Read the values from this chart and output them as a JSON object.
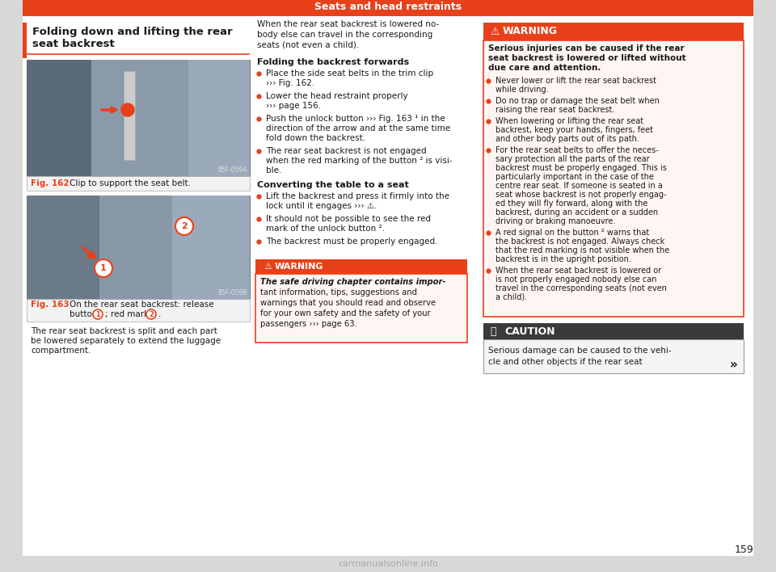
{
  "page_bg": "#d8d8d8",
  "content_bg": "#ffffff",
  "header_bg": "#e8401a",
  "header_text": "Seats and head restraints",
  "header_text_color": "#ffffff",
  "page_number": "159",
  "orange": "#e8401a",
  "dark_text": "#1a1a1a",
  "fig_label_color": "#e8401a",
  "warning_bg": "#fff5f3",
  "warning_border": "#e8401a",
  "caution_header_bg": "#3a3a3a",
  "caution_body_bg": "#f5f5f5",
  "image_bg": "#7a8a96",
  "fig162_id": "85F-059A",
  "fig163_id": "85F-059B",
  "section_title_line1": "Folding down and lifting the rear",
  "section_title_line2": "seat backrest",
  "fig162_caption": "Clip to support the seat belt.",
  "fig163_caption_line1": "On the rear seat backrest: release",
  "fig163_caption_line2_pre": "button",
  "fig163_caption_line2_mid": "; red mark",
  "intro_lines": [
    "When the rear seat backrest is lowered no-",
    "body else can travel in the corresponding",
    "seats (not even a child)."
  ],
  "folding_title": "Folding the backrest forwards",
  "mid_bullets": [
    [
      "Place the side seat belts in the trim clip",
      "››› Fig. 162."
    ],
    [
      "Lower the head restraint properly",
      "››› page 156."
    ],
    [
      "Push the unlock button ››› Fig. 163 ¹ in the",
      "direction of the arrow and at the same time",
      "fold down the backrest."
    ],
    [
      "The rear seat backrest is not engaged",
      "when the red marking of the button ² is visi-",
      "ble."
    ]
  ],
  "converting_title": "Converting the table to a seat",
  "convert_bullets": [
    [
      "Lift the backrest and press it firmly into the",
      "lock until it engages ››› ⚠."
    ],
    [
      "It should not be possible to see the red",
      "mark of the unlock button ²."
    ],
    [
      "The backrest must be properly engaged."
    ]
  ],
  "mid_warning_lines": [
    "The safe driving chapter contains impor-",
    "tant information, tips, suggestions and",
    "warnings that you should read and observe",
    "for your own safety and the safety of your",
    "passengers ››› page 63."
  ],
  "mid_warning_bold_count": 1,
  "right_warning_bold": [
    "Serious injuries can be caused if the rear",
    "seat backrest is lowered or lifted without",
    "due care and attention."
  ],
  "right_warning_bullets": [
    [
      "Never lower or lift the rear seat backrest",
      "while driving."
    ],
    [
      "Do no trap or damage the seat belt when",
      "raising the rear seat backrest."
    ],
    [
      "When lowering or lifting the rear seat",
      "backrest, keep your hands, fingers, feet",
      "and other body parts out of its path."
    ],
    [
      "For the rear seat belts to offer the neces-",
      "sary protection all the parts of the rear",
      "backrest must be properly engaged. This is",
      "particularly important in the case of the",
      "centre rear seat. If someone is seated in a",
      "seat whose backrest is not properly engag-",
      "ed they will fly forward, along with the",
      "backrest, during an accident or a sudden",
      "driving or braking manoeuvre."
    ],
    [
      "A red signal on the button ² warns that",
      "the backrest is not engaged. Always check",
      "that the red marking is not visible when the",
      "backrest is in the upright position."
    ],
    [
      "When the rear seat backrest is lowered or",
      "is not properly engaged nobody else can",
      "travel in the corresponding seats (not even",
      "a child)."
    ]
  ],
  "caution_lines": [
    "Serious damage can be caused to the vehi-",
    "cle and other objects if the rear seat"
  ],
  "rear_seat_lines": [
    "The rear seat backrest is split and each part",
    "be lowered separately to extend the luggage",
    "compartment."
  ]
}
